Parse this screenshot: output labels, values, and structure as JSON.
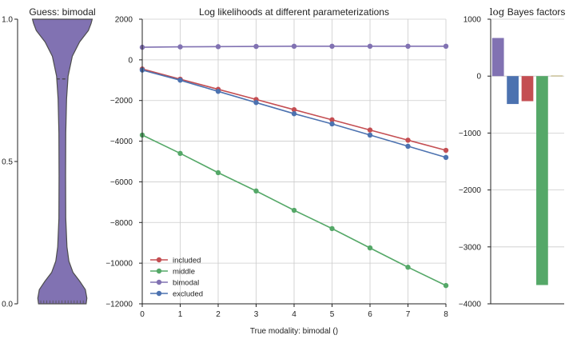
{
  "chart_data": [
    {
      "type": "violin",
      "title": "Guess: bimodal",
      "ylim": [
        0.0,
        1.0
      ],
      "yticks": [
        {
          "value": 0.0,
          "label": "0.0"
        },
        {
          "value": 0.5,
          "label": "0.5"
        },
        {
          "value": 1.0,
          "label": "1.0"
        }
      ],
      "median": 0.79,
      "color": "#8172B2",
      "grid": false
    },
    {
      "type": "line",
      "title": "Log likelihoods at different parameterizations",
      "xlabel": "True modality: bimodal ()",
      "ylabel": "",
      "xlim": [
        0,
        8
      ],
      "ylim": [
        -12000,
        2000
      ],
      "xticks": [
        {
          "value": 0,
          "label": "0"
        },
        {
          "value": 1,
          "label": "1"
        },
        {
          "value": 2,
          "label": "2"
        },
        {
          "value": 3,
          "label": "3"
        },
        {
          "value": 4,
          "label": "4"
        },
        {
          "value": 5,
          "label": "5"
        },
        {
          "value": 6,
          "label": "6"
        },
        {
          "value": 7,
          "label": "7"
        },
        {
          "value": 8,
          "label": "8"
        }
      ],
      "yticks": [
        {
          "value": 2000,
          "label": "2000"
        },
        {
          "value": 0,
          "label": "0"
        },
        {
          "value": -2000,
          "label": "−2000"
        },
        {
          "value": -4000,
          "label": "−4000"
        },
        {
          "value": -6000,
          "label": "−6000"
        },
        {
          "value": -8000,
          "label": "−8000"
        },
        {
          "value": -10000,
          "label": "−10000"
        },
        {
          "value": -12000,
          "label": "−12000"
        }
      ],
      "grid": true,
      "legend_position": "lower-left",
      "x": [
        0,
        1,
        2,
        3,
        4,
        5,
        6,
        7,
        8
      ],
      "series": [
        {
          "name": "included",
          "color": "#C44E52",
          "values": [
            -450,
            -950,
            -1450,
            -1950,
            -2450,
            -2950,
            -3450,
            -3950,
            -4450
          ]
        },
        {
          "name": "middle",
          "color": "#55A868",
          "values": [
            -3700,
            -4600,
            -5550,
            -6450,
            -7400,
            -8300,
            -9250,
            -10200,
            -11100
          ]
        },
        {
          "name": "bimodal",
          "color": "#8172B2",
          "values": [
            620,
            640,
            650,
            660,
            670,
            670,
            670,
            670,
            670
          ]
        },
        {
          "name": "excluded",
          "color": "#4C72B0",
          "values": [
            -500,
            -1000,
            -1550,
            -2100,
            -2650,
            -3150,
            -3700,
            -4250,
            -4800
          ]
        }
      ]
    },
    {
      "type": "bar",
      "title": "log Bayes factors",
      "title_math": "log",
      "title_rest": " Bayes factors",
      "ylim": [
        -4000,
        1000
      ],
      "yticks": [
        {
          "value": 1000,
          "label": "1000"
        },
        {
          "value": 0,
          "label": "0"
        },
        {
          "value": -1000,
          "label": "−1000"
        },
        {
          "value": -2000,
          "label": "−2000"
        },
        {
          "value": -3000,
          "label": "−3000"
        },
        {
          "value": -4000,
          "label": "−4000"
        }
      ],
      "grid": true,
      "bars": [
        {
          "value": 670,
          "color": "#8172B2"
        },
        {
          "value": -490,
          "color": "#4C72B0"
        },
        {
          "value": -440,
          "color": "#C44E52"
        },
        {
          "value": -3670,
          "color": "#55A868"
        },
        {
          "value": 10,
          "color": "#B4A56A"
        }
      ]
    }
  ]
}
